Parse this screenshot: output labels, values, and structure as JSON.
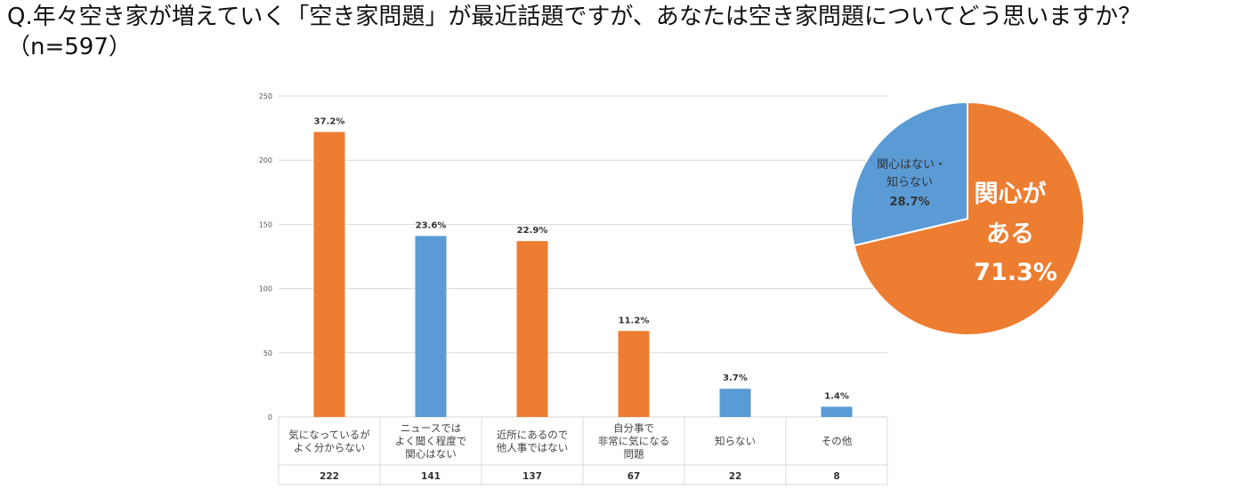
{
  "question": "Q.年々空き家が増えていく「空き家問題」が最近話題ですが、あなたは空き家問題についてどう思いますか？（n=597）",
  "chart_data": [
    {
      "type": "bar",
      "categories": [
        [
          "気になっているが",
          "よく分からない"
        ],
        [
          "ニュースでは",
          "よく聞く程度で",
          "関心はない"
        ],
        [
          "近所にあるので",
          "他人事ではない"
        ],
        [
          "自分事で",
          "非常に気になる",
          "問題"
        ],
        [
          "知らない"
        ],
        [
          "その他"
        ]
      ],
      "values": [
        222,
        141,
        137,
        67,
        22,
        8
      ],
      "percent_labels": [
        "37.2%",
        "23.6%",
        "22.9%",
        "11.2%",
        "3.7%",
        "1.4%"
      ],
      "count_labels": [
        "222",
        "141",
        "137",
        "67",
        "22",
        "8"
      ],
      "bar_colors": [
        "#ED7D31",
        "#5B9BD5",
        "#ED7D31",
        "#ED7D31",
        "#5B9BD5",
        "#5B9BD5"
      ],
      "ylim": [
        0,
        250
      ],
      "yticks": [
        0,
        50,
        100,
        150,
        200,
        250
      ],
      "grid": true
    },
    {
      "type": "pie",
      "slices": [
        {
          "label": [
            "関心が",
            "ある"
          ],
          "value": 71.3,
          "percent": "71.3%",
          "color": "#ED7D31"
        },
        {
          "label": [
            "関心はない・",
            "知らない"
          ],
          "value": 28.7,
          "percent": "28.7%",
          "color": "#5B9BD5"
        }
      ]
    }
  ],
  "colors": {
    "orange": "#ED7D31",
    "blue": "#5B9BD5",
    "grid": "#D9D9D9"
  }
}
